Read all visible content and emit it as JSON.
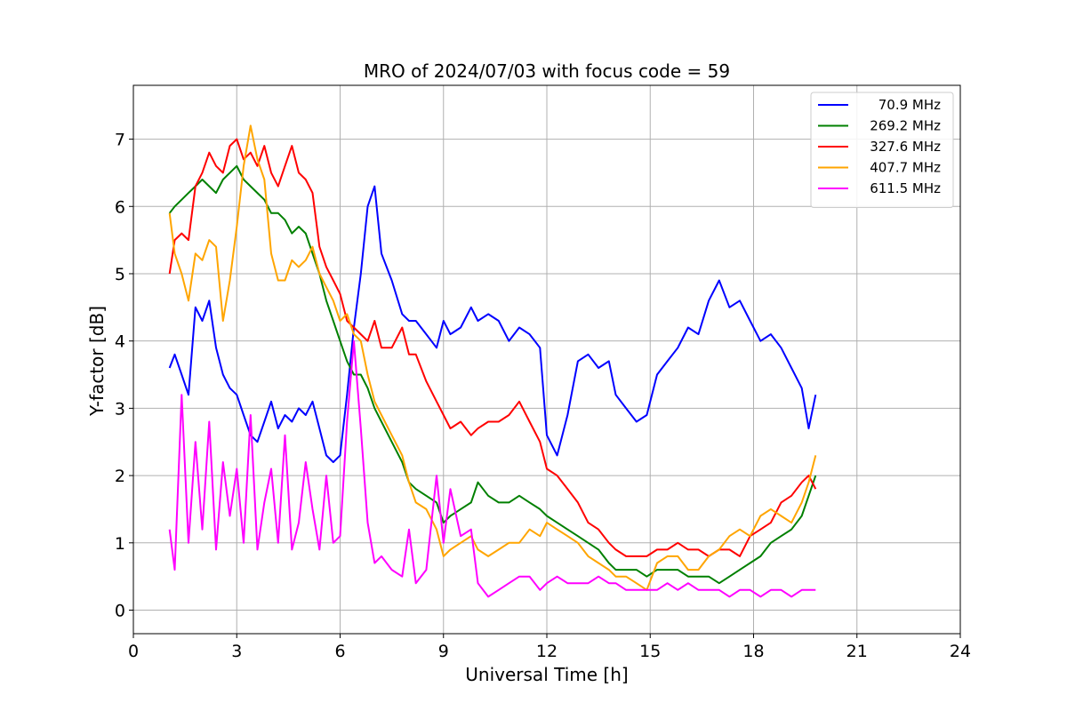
{
  "chart_data": {
    "type": "line",
    "title": "MRO of 2024/07/03 with focus code = 59",
    "xlabel": "Universal Time [h]",
    "ylabel": "Y-factor [dB]",
    "xlim": [
      0,
      24
    ],
    "ylim": [
      -0.35,
      7.8
    ],
    "xticks": [
      0,
      3,
      6,
      9,
      12,
      15,
      18,
      21,
      24
    ],
    "yticks": [
      0,
      1,
      2,
      3,
      4,
      5,
      6,
      7
    ],
    "grid": true,
    "legend_position": "top-right",
    "series": [
      {
        "name": "70.9 MHz",
        "color": "#0000ff",
        "x": [
          1.05,
          1.2,
          1.4,
          1.6,
          1.8,
          2.0,
          2.2,
          2.4,
          2.6,
          2.8,
          3.0,
          3.2,
          3.4,
          3.6,
          3.8,
          4.0,
          4.2,
          4.4,
          4.6,
          4.8,
          5.0,
          5.2,
          5.4,
          5.6,
          5.8,
          6.0,
          6.2,
          6.4,
          6.6,
          6.8,
          7.0,
          7.2,
          7.5,
          7.8,
          8.0,
          8.2,
          8.5,
          8.8,
          9.0,
          9.2,
          9.5,
          9.8,
          10.0,
          10.3,
          10.6,
          10.9,
          11.2,
          11.5,
          11.8,
          12.0,
          12.3,
          12.6,
          12.9,
          13.2,
          13.5,
          13.8,
          14.0,
          14.3,
          14.6,
          14.9,
          15.2,
          15.5,
          15.8,
          16.1,
          16.4,
          16.7,
          17.0,
          17.3,
          17.6,
          17.9,
          18.2,
          18.5,
          18.8,
          19.1,
          19.4,
          19.6,
          19.8
        ],
        "y": [
          3.6,
          3.8,
          3.5,
          3.2,
          4.5,
          4.3,
          4.6,
          3.9,
          3.5,
          3.3,
          3.2,
          2.9,
          2.6,
          2.5,
          2.8,
          3.1,
          2.7,
          2.9,
          2.8,
          3.0,
          2.9,
          3.1,
          2.7,
          2.3,
          2.2,
          2.3,
          3.2,
          4.2,
          5.0,
          6.0,
          6.3,
          5.3,
          4.9,
          4.4,
          4.3,
          4.3,
          4.1,
          3.9,
          4.3,
          4.1,
          4.2,
          4.5,
          4.3,
          4.4,
          4.3,
          4.0,
          4.2,
          4.1,
          3.9,
          2.6,
          2.3,
          2.9,
          3.7,
          3.8,
          3.6,
          3.7,
          3.2,
          3.0,
          2.8,
          2.9,
          3.5,
          3.7,
          3.9,
          4.2,
          4.1,
          4.6,
          4.9,
          4.5,
          4.6,
          4.3,
          4.0,
          4.1,
          3.9,
          3.6,
          3.3,
          2.7,
          3.2
        ]
      },
      {
        "name": "269.2 MHz",
        "color": "#008000",
        "x": [
          1.05,
          1.2,
          1.4,
          1.6,
          1.8,
          2.0,
          2.2,
          2.4,
          2.6,
          2.8,
          3.0,
          3.2,
          3.4,
          3.6,
          3.8,
          4.0,
          4.2,
          4.4,
          4.6,
          4.8,
          5.0,
          5.2,
          5.4,
          5.6,
          5.8,
          6.0,
          6.2,
          6.4,
          6.6,
          6.8,
          7.0,
          7.2,
          7.5,
          7.8,
          8.0,
          8.2,
          8.5,
          8.8,
          9.0,
          9.2,
          9.5,
          9.8,
          10.0,
          10.3,
          10.6,
          10.9,
          11.2,
          11.5,
          11.8,
          12.0,
          12.3,
          12.6,
          12.9,
          13.2,
          13.5,
          13.8,
          14.0,
          14.3,
          14.6,
          14.9,
          15.2,
          15.5,
          15.8,
          16.1,
          16.4,
          16.7,
          17.0,
          17.3,
          17.6,
          17.9,
          18.2,
          18.5,
          18.8,
          19.1,
          19.4,
          19.6,
          19.8
        ],
        "y": [
          5.9,
          6.0,
          6.1,
          6.2,
          6.3,
          6.4,
          6.3,
          6.2,
          6.4,
          6.5,
          6.6,
          6.4,
          6.3,
          6.2,
          6.1,
          5.9,
          5.9,
          5.8,
          5.6,
          5.7,
          5.6,
          5.3,
          5.0,
          4.6,
          4.3,
          4.0,
          3.7,
          3.5,
          3.5,
          3.3,
          3.0,
          2.8,
          2.5,
          2.2,
          1.9,
          1.8,
          1.7,
          1.6,
          1.3,
          1.4,
          1.5,
          1.6,
          1.9,
          1.7,
          1.6,
          1.6,
          1.7,
          1.6,
          1.5,
          1.4,
          1.3,
          1.2,
          1.1,
          1.0,
          0.9,
          0.7,
          0.6,
          0.6,
          0.6,
          0.5,
          0.6,
          0.6,
          0.6,
          0.5,
          0.5,
          0.5,
          0.4,
          0.5,
          0.6,
          0.7,
          0.8,
          1.0,
          1.1,
          1.2,
          1.4,
          1.7,
          2.0
        ]
      },
      {
        "name": "327.6 MHz",
        "color": "#ff0000",
        "x": [
          1.05,
          1.2,
          1.4,
          1.6,
          1.8,
          2.0,
          2.2,
          2.4,
          2.6,
          2.8,
          3.0,
          3.2,
          3.4,
          3.6,
          3.8,
          4.0,
          4.2,
          4.4,
          4.6,
          4.8,
          5.0,
          5.2,
          5.4,
          5.6,
          5.8,
          6.0,
          6.2,
          6.4,
          6.6,
          6.8,
          7.0,
          7.2,
          7.5,
          7.8,
          8.0,
          8.2,
          8.5,
          8.8,
          9.0,
          9.2,
          9.5,
          9.8,
          10.0,
          10.3,
          10.6,
          10.9,
          11.2,
          11.5,
          11.8,
          12.0,
          12.3,
          12.6,
          12.9,
          13.2,
          13.5,
          13.8,
          14.0,
          14.3,
          14.6,
          14.9,
          15.2,
          15.5,
          15.8,
          16.1,
          16.4,
          16.7,
          17.0,
          17.3,
          17.6,
          17.9,
          18.2,
          18.5,
          18.8,
          19.1,
          19.4,
          19.6,
          19.8
        ],
        "y": [
          5.0,
          5.5,
          5.6,
          5.5,
          6.3,
          6.5,
          6.8,
          6.6,
          6.5,
          6.9,
          7.0,
          6.7,
          6.8,
          6.6,
          6.9,
          6.5,
          6.3,
          6.6,
          6.9,
          6.5,
          6.4,
          6.2,
          5.4,
          5.1,
          4.9,
          4.7,
          4.3,
          4.2,
          4.1,
          4.0,
          4.3,
          3.9,
          3.9,
          4.2,
          3.8,
          3.8,
          3.4,
          3.1,
          2.9,
          2.7,
          2.8,
          2.6,
          2.7,
          2.8,
          2.8,
          2.9,
          3.1,
          2.8,
          2.5,
          2.1,
          2.0,
          1.8,
          1.6,
          1.3,
          1.2,
          1.0,
          0.9,
          0.8,
          0.8,
          0.8,
          0.9,
          0.9,
          1.0,
          0.9,
          0.9,
          0.8,
          0.9,
          0.9,
          0.8,
          1.1,
          1.2,
          1.3,
          1.6,
          1.7,
          1.9,
          2.0,
          1.8
        ]
      },
      {
        "name": "407.7 MHz",
        "color": "#ffa500",
        "x": [
          1.05,
          1.2,
          1.4,
          1.6,
          1.8,
          2.0,
          2.2,
          2.4,
          2.6,
          2.8,
          3.0,
          3.2,
          3.4,
          3.6,
          3.8,
          4.0,
          4.2,
          4.4,
          4.6,
          4.8,
          5.0,
          5.2,
          5.4,
          5.6,
          5.8,
          6.0,
          6.2,
          6.4,
          6.6,
          6.8,
          7.0,
          7.2,
          7.5,
          7.8,
          8.0,
          8.2,
          8.5,
          8.8,
          9.0,
          9.2,
          9.5,
          9.8,
          10.0,
          10.3,
          10.6,
          10.9,
          11.2,
          11.5,
          11.8,
          12.0,
          12.3,
          12.6,
          12.9,
          13.2,
          13.5,
          13.8,
          14.0,
          14.3,
          14.6,
          14.9,
          15.2,
          15.5,
          15.8,
          16.1,
          16.4,
          16.7,
          17.0,
          17.3,
          17.6,
          17.9,
          18.2,
          18.5,
          18.8,
          19.1,
          19.4,
          19.6,
          19.8
        ],
        "y": [
          5.9,
          5.3,
          5.0,
          4.6,
          5.3,
          5.2,
          5.5,
          5.4,
          4.3,
          4.9,
          5.7,
          6.6,
          7.2,
          6.7,
          6.4,
          5.3,
          4.9,
          4.9,
          5.2,
          5.1,
          5.2,
          5.4,
          5.0,
          4.8,
          4.6,
          4.3,
          4.4,
          4.1,
          4.0,
          3.5,
          3.1,
          2.9,
          2.6,
          2.3,
          1.9,
          1.6,
          1.5,
          1.2,
          0.8,
          0.9,
          1.0,
          1.1,
          0.9,
          0.8,
          0.9,
          1.0,
          1.0,
          1.2,
          1.1,
          1.3,
          1.2,
          1.1,
          1.0,
          0.8,
          0.7,
          0.6,
          0.5,
          0.5,
          0.4,
          0.3,
          0.7,
          0.8,
          0.8,
          0.6,
          0.6,
          0.8,
          0.9,
          1.1,
          1.2,
          1.1,
          1.4,
          1.5,
          1.4,
          1.3,
          1.6,
          1.9,
          2.3
        ]
      },
      {
        "name": "611.5 MHz",
        "color": "#ff00ff",
        "x": [
          1.05,
          1.2,
          1.4,
          1.6,
          1.8,
          2.0,
          2.2,
          2.4,
          2.6,
          2.8,
          3.0,
          3.2,
          3.4,
          3.6,
          3.8,
          4.0,
          4.2,
          4.4,
          4.6,
          4.8,
          5.0,
          5.2,
          5.4,
          5.6,
          5.8,
          6.0,
          6.2,
          6.4,
          6.6,
          6.8,
          7.0,
          7.2,
          7.5,
          7.8,
          8.0,
          8.2,
          8.5,
          8.8,
          9.0,
          9.2,
          9.5,
          9.8,
          10.0,
          10.3,
          10.6,
          10.9,
          11.2,
          11.5,
          11.8,
          12.0,
          12.3,
          12.6,
          12.9,
          13.2,
          13.5,
          13.8,
          14.0,
          14.3,
          14.6,
          14.9,
          15.2,
          15.5,
          15.8,
          16.1,
          16.4,
          16.7,
          17.0,
          17.3,
          17.6,
          17.9,
          18.2,
          18.5,
          18.8,
          19.1,
          19.4,
          19.6,
          19.8
        ],
        "y": [
          1.2,
          0.6,
          3.2,
          1.0,
          2.5,
          1.2,
          2.8,
          0.9,
          2.2,
          1.4,
          2.1,
          1.0,
          2.9,
          0.9,
          1.6,
          2.1,
          1.0,
          2.6,
          0.9,
          1.3,
          2.2,
          1.5,
          0.9,
          2.0,
          1.0,
          1.1,
          2.8,
          4.0,
          2.7,
          1.3,
          0.7,
          0.8,
          0.6,
          0.5,
          1.2,
          0.4,
          0.6,
          2.0,
          1.0,
          1.8,
          1.1,
          1.2,
          0.4,
          0.2,
          0.3,
          0.4,
          0.5,
          0.5,
          0.3,
          0.4,
          0.5,
          0.4,
          0.4,
          0.4,
          0.5,
          0.4,
          0.4,
          0.3,
          0.3,
          0.3,
          0.3,
          0.4,
          0.3,
          0.4,
          0.3,
          0.3,
          0.3,
          0.2,
          0.3,
          0.3,
          0.2,
          0.3,
          0.3,
          0.2,
          0.3,
          0.3,
          0.3
        ]
      }
    ]
  }
}
